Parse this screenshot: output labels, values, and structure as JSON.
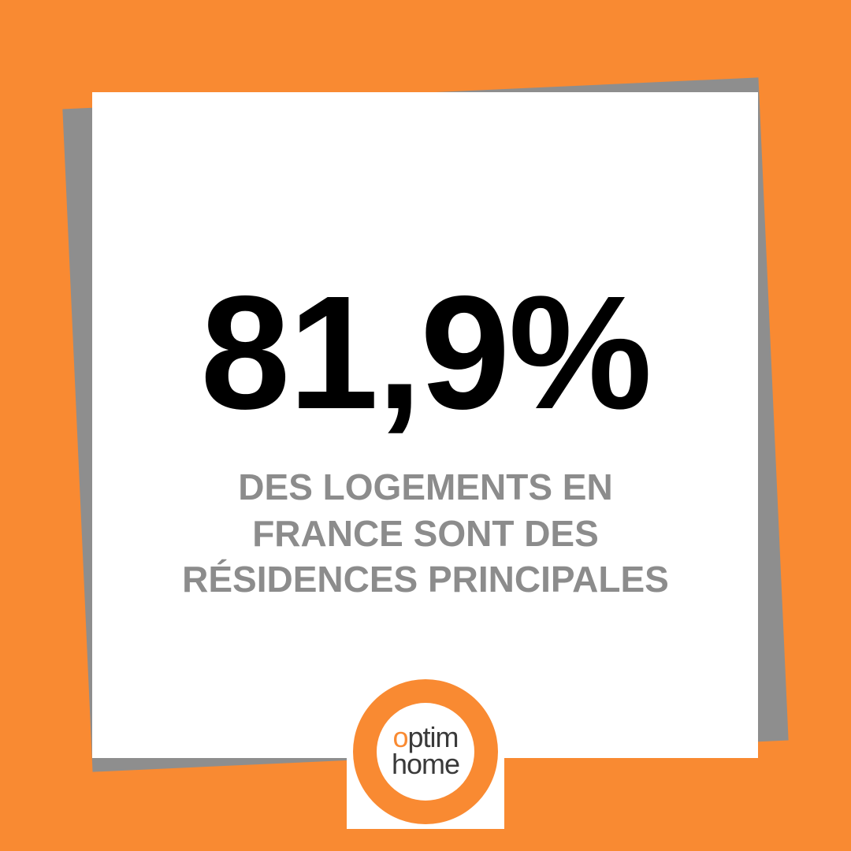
{
  "headline": "81,9%",
  "subtitle": [
    "DES LOGEMENTS EN",
    "FRANCE SONT DES",
    "RÉSIDENCES PRINCIPALES"
  ],
  "logo": [
    "optim",
    "home"
  ]
}
